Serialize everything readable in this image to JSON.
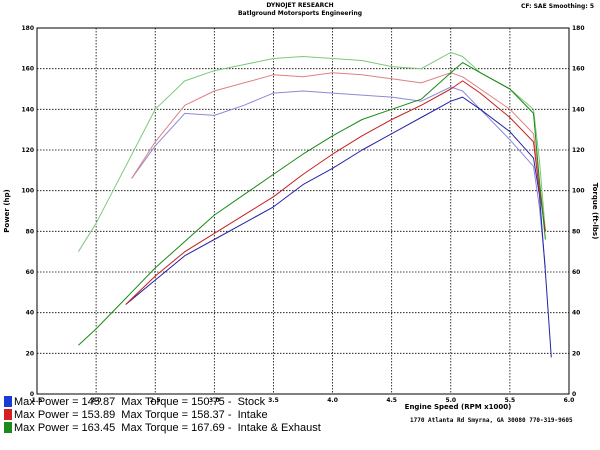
{
  "header": {
    "title": "DYNOJET RESEARCH",
    "subtitle": "Batlground Motorsports Engineering",
    "cf": "CF: SAE  Smoothing: 5"
  },
  "address": "1770 Atlanta Rd Smyrna, GA 30080 770-319-9605",
  "colors": {
    "stock": "#2323a8",
    "intake": "#c81e1e",
    "exhaust": "#168a16"
  },
  "legend": [
    {
      "label": "Max Power = 145.87  Max Torque = 150.75 -  Stock",
      "color": "#1a3ccf"
    },
    {
      "label": "Max Power = 153.89  Max Torque = 158.37 -  Intake",
      "color": "#d42020"
    },
    {
      "label": "Max Power = 163.45  Max Torque = 167.69 -  Intake & Exhaust",
      "color": "#1a8a1a"
    }
  ],
  "chart_data": {
    "type": "line",
    "xlabel": "Engine Speed (RPM x1000)",
    "ylabel": "Power (hp)",
    "y2label": "Torque (ft-lbs)",
    "xlim": [
      1.5,
      6.0
    ],
    "ylim": [
      0,
      180
    ],
    "x_ticks": [
      "1.5",
      "2.0",
      "2.5",
      "3.0",
      "3.5",
      "4.0",
      "4.5",
      "5.0",
      "5.5",
      "6.0"
    ],
    "y_ticks": [
      "0",
      "20",
      "40",
      "60",
      "80",
      "100",
      "120",
      "140",
      "160",
      "180"
    ],
    "grid": true,
    "series": [
      {
        "name": "Stock",
        "quantity": "power",
        "color": "#2323a8",
        "x": [
          2.25,
          2.5,
          2.75,
          3.0,
          3.25,
          3.5,
          3.75,
          4.0,
          4.25,
          4.5,
          4.75,
          5.0,
          5.1,
          5.25,
          5.5,
          5.7,
          5.75,
          5.8,
          5.85
        ],
        "y": [
          44,
          56,
          68,
          76,
          84,
          92,
          103,
          111,
          120,
          128,
          136,
          144,
          146,
          140,
          129,
          116,
          98,
          60,
          18
        ]
      },
      {
        "name": "Intake",
        "quantity": "power",
        "color": "#c81e1e",
        "x": [
          2.25,
          2.5,
          2.75,
          3.0,
          3.25,
          3.5,
          3.75,
          4.0,
          4.25,
          4.5,
          4.75,
          5.0,
          5.1,
          5.25,
          5.5,
          5.7,
          5.75,
          5.8
        ],
        "y": [
          44,
          58,
          70,
          79,
          88,
          97,
          108,
          118,
          127,
          135,
          142,
          150,
          154,
          148,
          136,
          124,
          100,
          80
        ]
      },
      {
        "name": "Intake & Exhaust",
        "quantity": "power",
        "color": "#168a16",
        "x": [
          1.85,
          2.0,
          2.25,
          2.5,
          2.75,
          3.0,
          3.25,
          3.5,
          3.75,
          4.0,
          4.25,
          4.5,
          4.75,
          5.0,
          5.1,
          5.25,
          5.5,
          5.7,
          5.75,
          5.8
        ],
        "y": [
          24,
          32,
          47,
          62,
          75,
          88,
          98,
          108,
          118,
          127,
          135,
          140,
          145,
          158,
          163,
          158,
          150,
          138,
          105,
          76
        ]
      },
      {
        "name": "Stock",
        "quantity": "torque",
        "color": "#8a8ad8",
        "x": [
          2.3,
          2.5,
          2.75,
          3.0,
          3.25,
          3.5,
          3.75,
          4.0,
          4.25,
          4.5,
          4.75,
          5.0,
          5.1,
          5.25,
          5.5,
          5.7,
          5.75,
          5.8
        ],
        "y": [
          106,
          122,
          138,
          137,
          142,
          148,
          149,
          148,
          147,
          146,
          144,
          151,
          149,
          140,
          125,
          112,
          92,
          62
        ]
      },
      {
        "name": "Intake",
        "quantity": "torque",
        "color": "#e08080",
        "x": [
          2.3,
          2.5,
          2.75,
          3.0,
          3.25,
          3.5,
          3.75,
          4.0,
          4.25,
          4.5,
          4.75,
          5.0,
          5.1,
          5.25,
          5.5,
          5.7,
          5.75,
          5.8
        ],
        "y": [
          106,
          124,
          142,
          149,
          153,
          157,
          156,
          158,
          157,
          155,
          153,
          158,
          156,
          150,
          140,
          128,
          104,
          80
        ]
      },
      {
        "name": "Intake & Exhaust",
        "quantity": "torque",
        "color": "#7cc87c",
        "x": [
          1.85,
          2.0,
          2.25,
          2.5,
          2.75,
          3.0,
          3.25,
          3.5,
          3.75,
          4.0,
          4.25,
          4.5,
          4.75,
          5.0,
          5.1,
          5.25,
          5.5,
          5.7,
          5.75,
          5.8
        ],
        "y": [
          70,
          84,
          112,
          140,
          154,
          159,
          162,
          165,
          166,
          165,
          164,
          161,
          160,
          168,
          166,
          158,
          150,
          140,
          115,
          80
        ]
      }
    ]
  }
}
